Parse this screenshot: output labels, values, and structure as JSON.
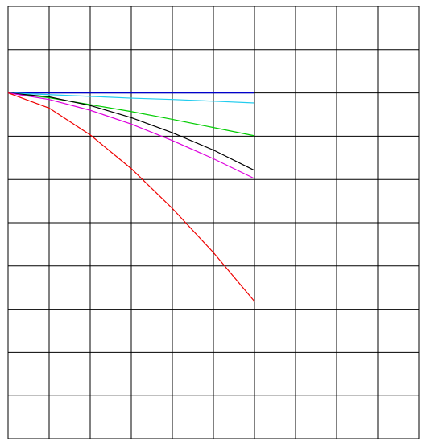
{
  "chart_data": {
    "type": "line",
    "x": [
      0,
      1,
      2,
      3,
      4,
      5,
      6
    ],
    "series": [
      {
        "color": "#0000cc",
        "values": [
          0,
          0,
          0,
          0,
          0,
          0,
          0
        ]
      },
      {
        "color": "#22ccee",
        "values": [
          0,
          -0.04,
          -0.08,
          -0.12,
          -0.15,
          -0.19,
          -0.23
        ]
      },
      {
        "color": "#00cc00",
        "values": [
          0,
          -0.11,
          -0.27,
          -0.43,
          -0.61,
          -0.8,
          -0.99
        ]
      },
      {
        "color": "#000000",
        "values": [
          0,
          -0.09,
          -0.29,
          -0.57,
          -0.92,
          -1.32,
          -1.79
        ]
      },
      {
        "color": "#dd00dd",
        "values": [
          0,
          -0.15,
          -0.4,
          -0.72,
          -1.1,
          -1.52,
          -1.98
        ]
      },
      {
        "color": "#ee0000",
        "values": [
          0,
          -0.35,
          -0.97,
          -1.75,
          -2.67,
          -3.69,
          -4.82
        ]
      }
    ],
    "xlim": [
      0,
      10
    ],
    "ylim": [
      -8,
      2
    ],
    "xticks": [
      0,
      1,
      2,
      3,
      4,
      5,
      6,
      7,
      8,
      9,
      10
    ],
    "yticks": [
      -8,
      -7,
      -6,
      -5,
      -4,
      -3,
      -2,
      -1,
      0,
      1,
      2
    ],
    "grid": true
  }
}
